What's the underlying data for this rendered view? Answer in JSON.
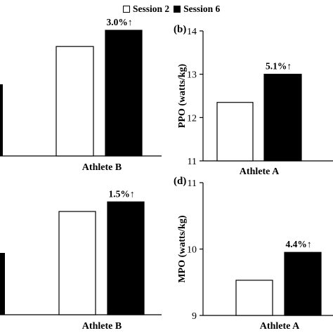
{
  "legend": {
    "items": [
      {
        "label": "Session 2",
        "color": "#ffffff"
      },
      {
        "label": "Session 6",
        "color": "#000000"
      }
    ]
  },
  "chart_data": [
    {
      "panel_label": "",
      "type": "bar",
      "categories": [
        "Athlete B"
      ],
      "series": [
        {
          "name": "Session 2",
          "values": [
            13.7
          ]
        },
        {
          "name": "Session 6",
          "values": [
            14.1
          ]
        }
      ],
      "annotations": [
        {
          "category": "Athlete B",
          "text": "3.0%↑"
        }
      ],
      "xlabel": "",
      "ylabel": "",
      "ylim": [
        11,
        14.5
      ],
      "yticks": [],
      "grid": false,
      "partial_left_bar": true
    },
    {
      "panel_label": "(b)",
      "type": "bar",
      "categories": [
        "Athlete A"
      ],
      "series": [
        {
          "name": "Session 2",
          "values": [
            12.35
          ]
        },
        {
          "name": "Session 6",
          "values": [
            13.0
          ]
        }
      ],
      "annotations": [
        {
          "category": "Athlete A",
          "text": "5.1%↑"
        }
      ],
      "xlabel": "",
      "ylabel": "PPO (watts/kg)",
      "ylim": [
        11,
        14
      ],
      "yticks": [
        "11",
        "12",
        "13",
        "14"
      ],
      "grid": false
    },
    {
      "panel_label": "",
      "type": "bar",
      "categories": [
        "Athlete B"
      ],
      "series": [
        {
          "name": "Session 2",
          "values": [
            10.72
          ]
        },
        {
          "name": "Session 6",
          "values": [
            10.88
          ]
        }
      ],
      "annotations": [
        {
          "category": "Athlete B",
          "text": "1.5%↑"
        }
      ],
      "xlabel": "",
      "ylabel": "",
      "ylim": [
        9,
        11.2
      ],
      "yticks": [],
      "grid": false,
      "partial_left_bar": true
    },
    {
      "panel_label": "(d)",
      "type": "bar",
      "categories": [
        "Athlete A"
      ],
      "series": [
        {
          "name": "Session 2",
          "values": [
            9.53
          ]
        },
        {
          "name": "Session 6",
          "values": [
            9.95
          ]
        }
      ],
      "annotations": [
        {
          "category": "Athlete A",
          "text": "4.4%↑"
        }
      ],
      "xlabel": "",
      "ylabel": "MPO (watts/kg)",
      "ylim": [
        9,
        11
      ],
      "yticks": [
        "9",
        "10",
        "11"
      ],
      "grid": false
    }
  ]
}
